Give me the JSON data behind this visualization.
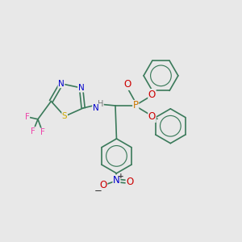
{
  "bg_color": "#e8e8e8",
  "bond_color": "#3a7a5a",
  "bond_width": 1.2,
  "atom_colors": {
    "N": "#0000cc",
    "O": "#cc0000",
    "S": "#ccaa00",
    "P": "#cc7700",
    "F": "#ee44aa",
    "H": "#777777",
    "C": "#3a7a5a"
  },
  "font_size": 7.5
}
